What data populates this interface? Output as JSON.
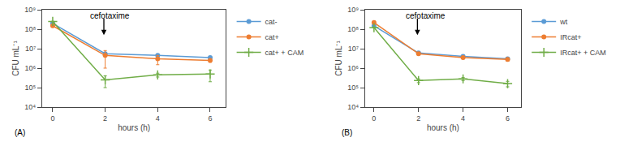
{
  "chart_data": [
    {
      "type": "line",
      "panel_label": "(A)",
      "xlabel": "hours (h)",
      "ylabel": "CFU mL⁻¹",
      "x": [
        0,
        2,
        4,
        6
      ],
      "xlim": [
        -0.4,
        6.6
      ],
      "xticks": [
        0,
        2,
        4,
        6
      ],
      "log": "y",
      "ylim": [
        10000,
        1000000000
      ],
      "yticks": [
        {
          "value": 10000,
          "label": "10⁴"
        },
        {
          "value": 100000,
          "label": "10⁵"
        },
        {
          "value": 1000000,
          "label": "10⁶"
        },
        {
          "value": 10000000,
          "label": "10⁷"
        },
        {
          "value": 100000000,
          "label": "10⁸"
        },
        {
          "value": 1000000000,
          "label": "10⁹"
        }
      ],
      "grid": false,
      "legend": "right",
      "series": [
        {
          "name": "cat-",
          "color": "#5B9BD5",
          "marker": "circle",
          "values": [
            200000000.0,
            5500000.0,
            4500000.0,
            3500000.0
          ],
          "yerr_low": [
            5000000.0,
            0,
            500000.0,
            500000.0
          ],
          "yerr_high": [
            5000000.0,
            500000.0,
            500000.0,
            500000.0
          ]
        },
        {
          "name": "cat+",
          "color": "#ED7D31",
          "marker": "circle",
          "values": [
            150000000.0,
            4500000.0,
            3000000.0,
            2500000.0
          ],
          "yerr_low": [
            5000000.0,
            3500000.0,
            1500000.0,
            500000.0
          ],
          "yerr_high": [
            5000000.0,
            3500000.0,
            1500000.0,
            500000.0
          ]
        },
        {
          "name": "cat+ + CAM",
          "color": "#70AD47",
          "marker": "plus",
          "values": [
            250000000.0,
            250000.0,
            450000.0,
            500000.0
          ],
          "yerr_low": [
            5000000.0,
            150000.0,
            100000.0,
            300000.0
          ],
          "yerr_high": [
            5000000.0,
            150000.0,
            100000.0,
            300000.0
          ]
        }
      ],
      "annotations": [
        {
          "text": "cefotaxime",
          "x": 1.35,
          "y": 500000000.0
        }
      ],
      "arrows": [
        {
          "x_tail": 1.95,
          "y_tail": 400000000.0,
          "x_head": 1.95,
          "y_head": 50000000.0
        }
      ]
    },
    {
      "type": "line",
      "panel_label": "(B)",
      "xlabel": "hours (h)",
      "ylabel": "CFU mL⁻¹",
      "x": [
        0,
        2,
        4,
        6
      ],
      "xlim": [
        -0.4,
        6.6
      ],
      "xticks": [
        0,
        2,
        4,
        6
      ],
      "log": "y",
      "ylim": [
        10000,
        1000000000
      ],
      "yticks": [
        {
          "value": 10000,
          "label": "10⁴"
        },
        {
          "value": 100000,
          "label": "10⁵"
        },
        {
          "value": 1000000,
          "label": "10⁶"
        },
        {
          "value": 10000000,
          "label": "10⁷"
        },
        {
          "value": 100000000,
          "label": "10⁸"
        },
        {
          "value": 1000000000,
          "label": "10⁹"
        }
      ],
      "grid": false,
      "legend": "right",
      "series": [
        {
          "name": "wt",
          "color": "#5B9BD5",
          "marker": "circle",
          "values": [
            150000000.0,
            6000000.0,
            4000000.0,
            3000000.0
          ],
          "yerr_low": [
            5000000.0,
            500000.0,
            500000.0,
            500000.0
          ],
          "yerr_high": [
            5000000.0,
            500000.0,
            500000.0,
            500000.0
          ]
        },
        {
          "name": "IRcat+",
          "color": "#ED7D31",
          "marker": "circle",
          "values": [
            220000000.0,
            5500000.0,
            3500000.0,
            2800000.0
          ],
          "yerr_low": [
            5000000.0,
            500000.0,
            500000.0,
            500000.0
          ],
          "yerr_high": [
            5000000.0,
            500000.0,
            500000.0,
            500000.0
          ]
        },
        {
          "name": "IRcat+ + CAM",
          "color": "#70AD47",
          "marker": "plus",
          "values": [
            120000000.0,
            230000.0,
            280000.0,
            160000.0
          ],
          "yerr_low": [
            5000000.0,
            50000.0,
            50000.0,
            50000.0
          ],
          "yerr_high": [
            5000000.0,
            50000.0,
            50000.0,
            50000.0
          ]
        }
      ],
      "annotations": [
        {
          "text": "cefotaxime",
          "x": 1.35,
          "y": 500000000.0
        }
      ],
      "arrows": [
        {
          "x_tail": 1.95,
          "y_tail": 400000000.0,
          "x_head": 1.95,
          "y_head": 50000000.0
        }
      ]
    }
  ]
}
